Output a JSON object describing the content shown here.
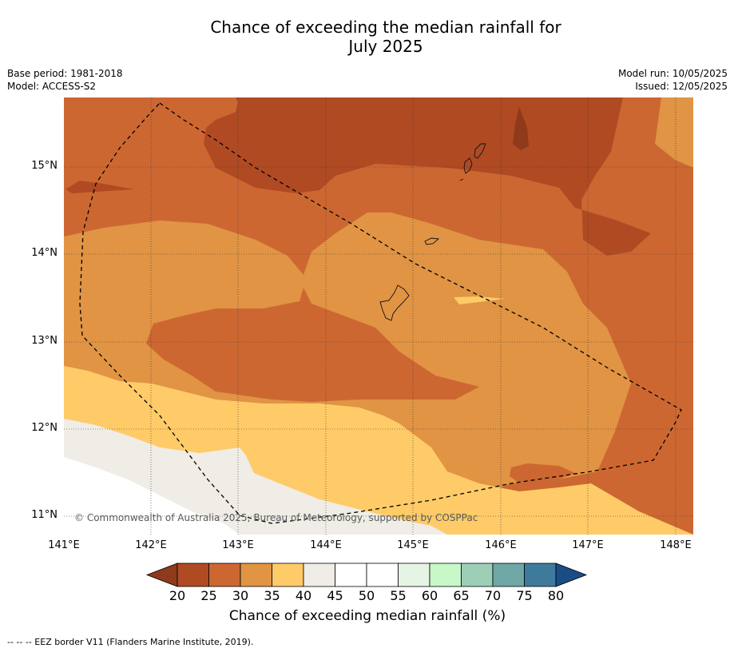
{
  "title_line1": "Chance of exceeding the median rainfall for",
  "title_line2": "July 2025",
  "meta_left": [
    "Base period: 1981-2018",
    "Model: ACCESS-S2"
  ],
  "meta_right": [
    "Model run: 10/05/2025",
    "Issued: 12/05/2025"
  ],
  "lat_ticks": [
    "15°N",
    "14°N",
    "13°N",
    "12°N",
    "11°N"
  ],
  "lon_ticks": [
    "141°E",
    "142°E",
    "143°E",
    "144°E",
    "145°E",
    "146°E",
    "147°E",
    "148°E"
  ],
  "colorbar": {
    "labels": [
      "20",
      "25",
      "30",
      "35",
      "40",
      "45",
      "50",
      "55",
      "60",
      "65",
      "70",
      "75",
      "80"
    ],
    "colors": [
      "#8e3a1b",
      "#b04a23",
      "#cd6732",
      "#e09444",
      "#fecb68",
      "#f0ece6",
      "#ffffff",
      "#ffffff",
      "#e5f4e4",
      "#c8f7c8",
      "#9ccfb6",
      "#6fa6a6",
      "#3e7a9c",
      "#1a4d86"
    ],
    "title": "Chance of exceeding median rainfall (%)"
  },
  "copyright": "© Commonwealth of Australia 2025, Bureau of Meteorology, supported by COSPPac",
  "footnote": "--  --  -- EEZ border V11 (Flanders Marine Institute, 2019).",
  "colors": {
    "p20": "#8e3a1b",
    "p25": "#b04a23",
    "p30": "#cd6732",
    "p35": "#e09444",
    "p40": "#fecb68",
    "p45": "#f0ece6",
    "p50": "#ffffff"
  }
}
